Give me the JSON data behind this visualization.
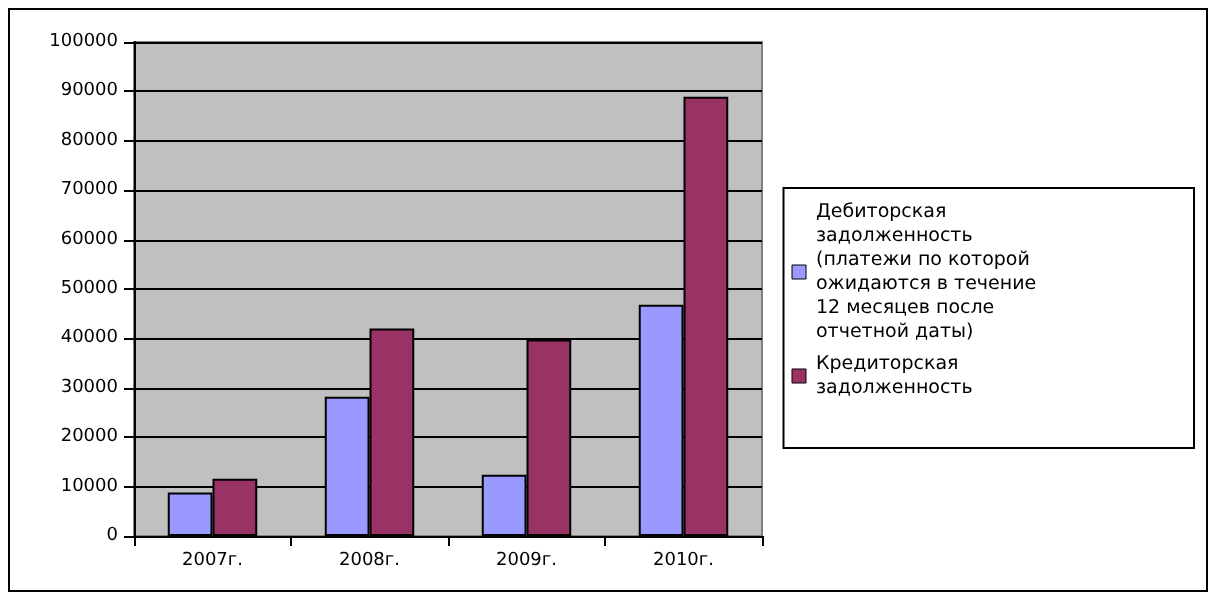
{
  "chart_data": {
    "type": "bar",
    "categories": [
      "2007г.",
      "2008г.",
      "2009г.",
      "2010г."
    ],
    "series": [
      {
        "name": "Дебиторская задолженность (платежи по которой ожидаются в течение 12 месяцев после отчетной даты)",
        "color": "#9999ff",
        "values": [
          8800,
          28200,
          12400,
          46800
        ]
      },
      {
        "name": "Кредиторская задолженность",
        "color": "#993366",
        "values": [
          11600,
          42000,
          39800,
          88900
        ]
      }
    ],
    "ylim": [
      0,
      100000
    ],
    "yticks": [
      0,
      10000,
      20000,
      30000,
      40000,
      50000,
      60000,
      70000,
      80000,
      90000,
      100000
    ],
    "grid": "y",
    "legend": "right"
  }
}
